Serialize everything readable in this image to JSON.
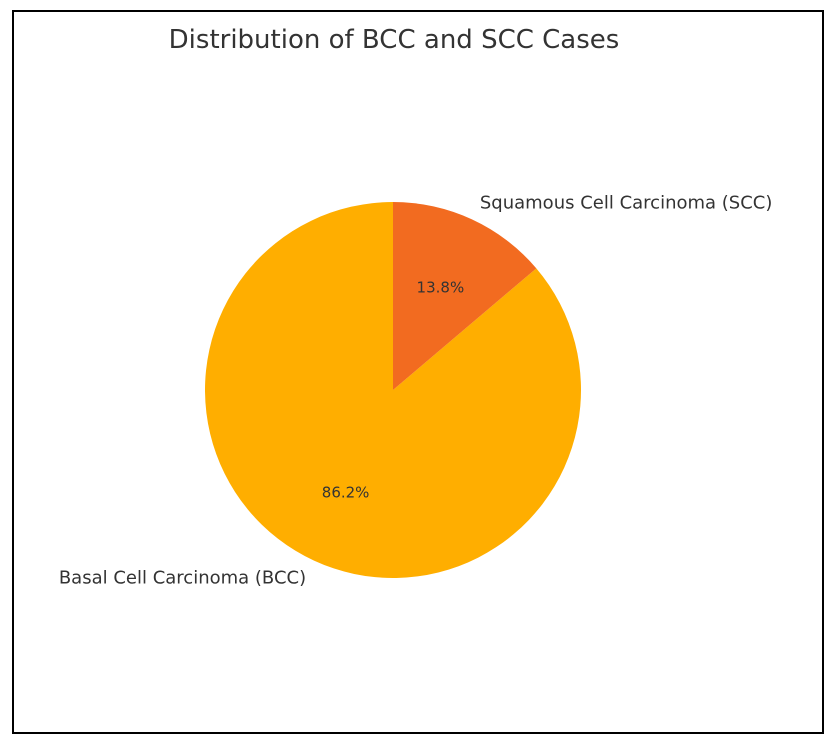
{
  "chart_data": {
    "type": "pie",
    "title": "Distribution of BCC and SCC Cases",
    "slices": [
      {
        "label": "Basal Cell Carcinoma (BCC)",
        "value": 86.2,
        "pct_label": "86.2%",
        "color": "#FFAE00"
      },
      {
        "label": "Squamous Cell Carcinoma (SCC)",
        "value": 13.8,
        "pct_label": "13.8%",
        "color": "#F26B20"
      }
    ],
    "start_angle": "top (12 o'clock)",
    "direction": "counterclockwise for BCC, SCC on top-right"
  }
}
